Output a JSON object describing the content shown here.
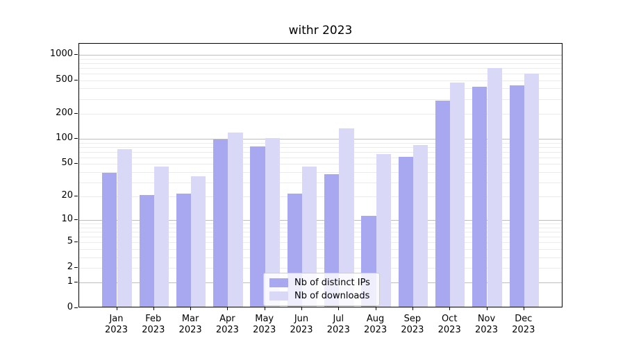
{
  "chart_data": {
    "type": "bar",
    "title": "withr 2023",
    "scale": "log1p",
    "ylim": [
      0,
      1357
    ],
    "yticks": [
      0,
      1,
      2,
      5,
      10,
      20,
      50,
      100,
      200,
      500,
      1000
    ],
    "grid": {
      "major_values": [
        1,
        10,
        100,
        1000
      ],
      "major_color": "#bdbdbd",
      "minor_color": "#ebebeb"
    },
    "categories": [
      "Jan",
      "Feb",
      "Mar",
      "Apr",
      "May",
      "Jun",
      "Jul",
      "Aug",
      "Sep",
      "Oct",
      "Nov",
      "Dec"
    ],
    "year": "2023",
    "series": [
      {
        "name": "Nb of distinct IPs",
        "color": "#a8a8f0",
        "values": [
          38,
          20,
          21,
          95,
          78,
          21,
          36,
          11,
          59,
          277,
          404,
          419
        ]
      },
      {
        "name": "Nb of downloads",
        "color": "#d9d9f7",
        "values": [
          73,
          45,
          34,
          114,
          98,
          45,
          128,
          63,
          81,
          455,
          675,
          580
        ]
      }
    ],
    "legend_position": "lower-center"
  }
}
